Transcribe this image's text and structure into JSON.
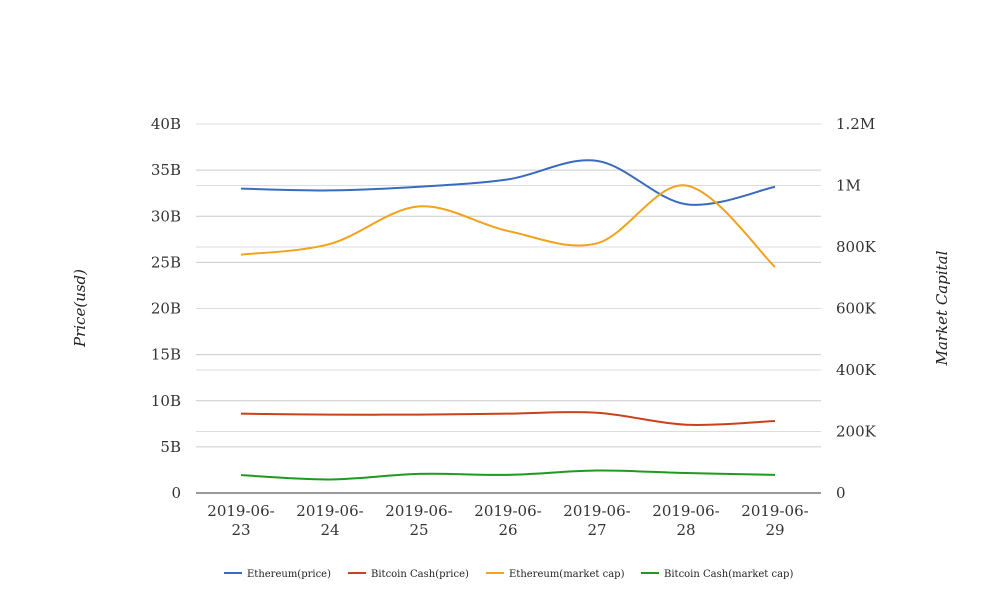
{
  "chart_data": {
    "type": "line",
    "categories": [
      "2019-06-23",
      "2019-06-24",
      "2019-06-25",
      "2019-06-26",
      "2019-06-27",
      "2019-06-28",
      "2019-06-29"
    ],
    "x_tick_lines": [
      [
        "2019-06-",
        "23"
      ],
      [
        "2019-06-",
        "24"
      ],
      [
        "2019-06-",
        "25"
      ],
      [
        "2019-06-",
        "26"
      ],
      [
        "2019-06-",
        "27"
      ],
      [
        "2019-06-",
        "28"
      ],
      [
        "2019-06-",
        "29"
      ]
    ],
    "y_left": {
      "label": "Price(usd)",
      "ylim": [
        0,
        40000000000
      ],
      "ticks": [
        0,
        5000000000,
        10000000000,
        15000000000,
        20000000000,
        25000000000,
        30000000000,
        35000000000,
        40000000000
      ],
      "tick_labels": [
        "0",
        "5B",
        "10B",
        "15B",
        "20B",
        "25B",
        "30B",
        "35B",
        "40B"
      ]
    },
    "y_right": {
      "label": "Market Capital",
      "ylim": [
        0,
        1200000
      ],
      "ticks": [
        0,
        200000,
        400000,
        600000,
        800000,
        1000000,
        1200000
      ],
      "tick_labels": [
        "0",
        "200K",
        "400K",
        "600K",
        "800K",
        "1M",
        "1.2M"
      ]
    },
    "grid": true,
    "legend_position": "bottom",
    "series": [
      {
        "name": "Ethereum(price)",
        "axis": "left",
        "color": "#3a6bbf",
        "values": [
          33000000000,
          32800000000,
          33200000000,
          34000000000,
          36000000000,
          31300000000,
          33200000000
        ]
      },
      {
        "name": "Bitcoin Cash(price)",
        "axis": "left",
        "color": "#c9421b",
        "values": [
          8600000000,
          8500000000,
          8500000000,
          8600000000,
          8700000000,
          7400000000,
          7800000000
        ]
      },
      {
        "name": "Ethereum(market cap)",
        "axis": "right",
        "color": "#f2a21b",
        "values": [
          775000,
          810000,
          932000,
          852000,
          812000,
          1000000,
          735000
        ]
      },
      {
        "name": "Bitcoin Cash(market cap)",
        "axis": "right",
        "color": "#1e9a1e",
        "values": [
          58000,
          44000,
          62000,
          59000,
          73000,
          65000,
          59000
        ]
      }
    ]
  }
}
